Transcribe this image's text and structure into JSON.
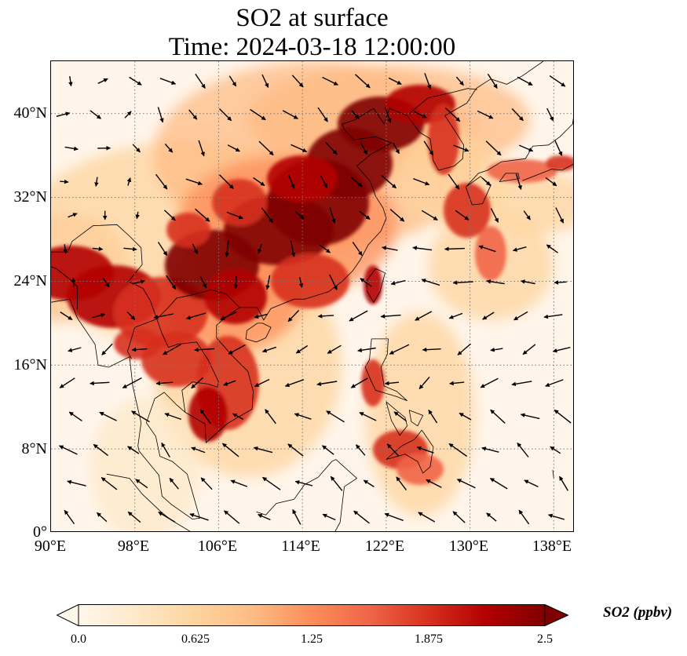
{
  "title": {
    "line1": "SO2 at surface",
    "line2": "Time: 2024-03-18 12:00:00"
  },
  "map": {
    "variable": "SO2",
    "extent": {
      "lon_min": 90,
      "lon_max": 140,
      "lat_min": 0,
      "lat_max": 45
    },
    "lat_ticks": [
      "40°N",
      "32°N",
      "24°N",
      "16°N",
      "8°N",
      "0°"
    ],
    "lon_ticks": [
      "90°E",
      "98°E",
      "106°E",
      "114°E",
      "122°E",
      "130°E",
      "138°E"
    ],
    "gridlines": "dotted",
    "background_color": "#fff5ea",
    "high_value_color": "#7f0000"
  },
  "colorbar": {
    "label": "SO2 (ppbv)",
    "ticks": [
      "0.0",
      "0.625",
      "1.25",
      "1.875",
      "2.5"
    ],
    "extend": "both",
    "colormap": [
      "#fff7ec",
      "#fee8c8",
      "#fdd49e",
      "#fdbb84",
      "#fc8d59",
      "#ef6548",
      "#d7301f",
      "#b30000",
      "#7f0000"
    ]
  }
}
